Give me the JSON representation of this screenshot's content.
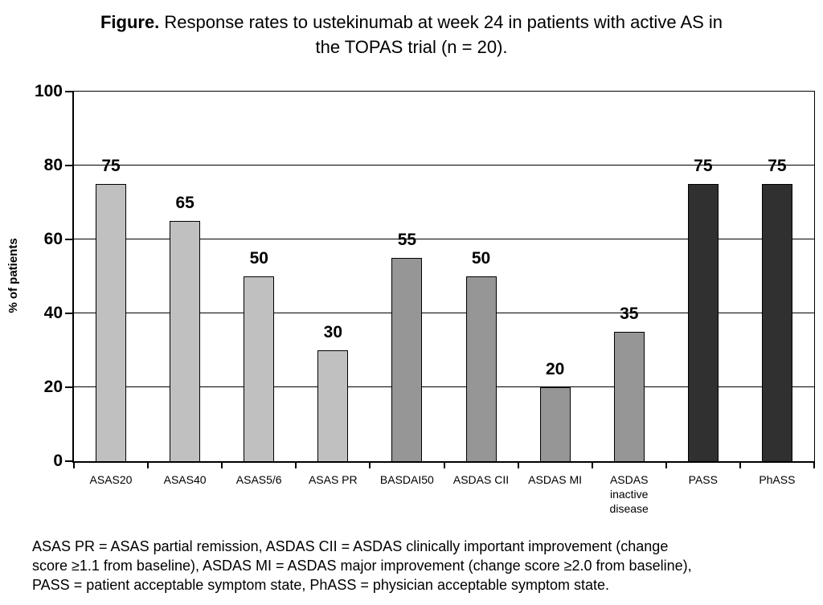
{
  "title": {
    "prefix": "Figure.",
    "line1_rest": "Response rates to ustekinumab at week 24 in patients with active AS in",
    "line2": "the TOPAS trial (n = 20)."
  },
  "chart_data": {
    "type": "bar",
    "categories": [
      "ASAS20",
      "ASAS40",
      "ASAS5/6",
      "ASAS PR",
      "BASDAI50",
      "ASDAS CII",
      "ASDAS MI",
      "ASDAS inactive disease",
      "PASS",
      "PhASS"
    ],
    "values": [
      75,
      65,
      50,
      30,
      55,
      50,
      20,
      35,
      75,
      75
    ],
    "bar_colors": [
      "#c0c0c0",
      "#c0c0c0",
      "#c0c0c0",
      "#c0c0c0",
      "#969696",
      "#969696",
      "#969696",
      "#969696",
      "#303030",
      "#303030"
    ],
    "bar_border_color": "#000000",
    "title": "Figure. Response rates to ustekinumab at week 24 in patients with active AS in the TOPAS trial (n = 20).",
    "xlabel": "",
    "ylabel": "% of patients",
    "ylim": [
      0,
      100
    ],
    "yticks": [
      0,
      20,
      40,
      60,
      80,
      100
    ],
    "grid": true,
    "legend": false,
    "data_labels": true
  },
  "footnote": {
    "lines": [
      "ASAS PR = ASAS partial remission, ASDAS CII = ASDAS clinically important improvement (change",
      "score ≥1.1 from baseline), ASDAS MI = ASDAS major improvement (change score ≥2.0 from baseline),",
      "PASS = patient acceptable symptom state, PhASS = physician acceptable symptom state."
    ]
  }
}
